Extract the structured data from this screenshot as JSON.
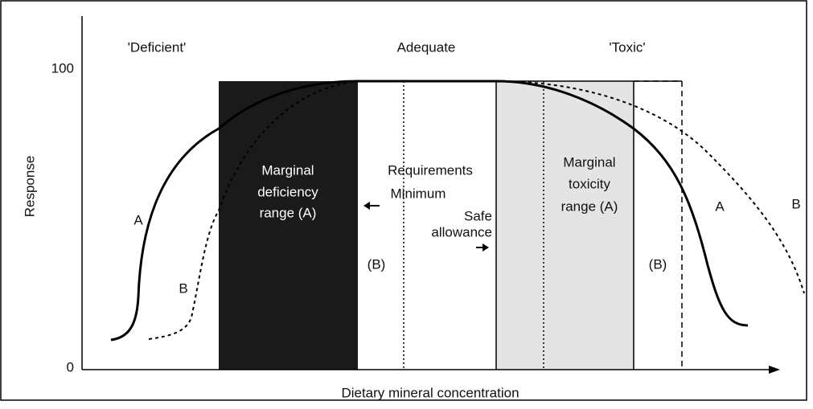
{
  "header": {
    "left": "'Deficient'",
    "middle": "Adequate",
    "right": "'Toxic'"
  },
  "axes": {
    "y_title": "Response",
    "y_top": "100",
    "y_bottom": "0",
    "x_title": "Dietary mineral concentration"
  },
  "regions": {
    "deficiency": [
      "Marginal",
      "deficiency",
      "range (A)"
    ],
    "requirements": "Requirements",
    "minimum": "Minimum",
    "safe": [
      "Safe",
      "allowance"
    ],
    "toxicity": [
      "Marginal",
      "toxicity",
      "range (A)"
    ]
  },
  "curve_labels": {
    "left_a": "A",
    "left_b": "B",
    "right_a": "A",
    "right_b": "B",
    "mid_b_left": "(B)",
    "mid_b_right": "(B)"
  }
}
